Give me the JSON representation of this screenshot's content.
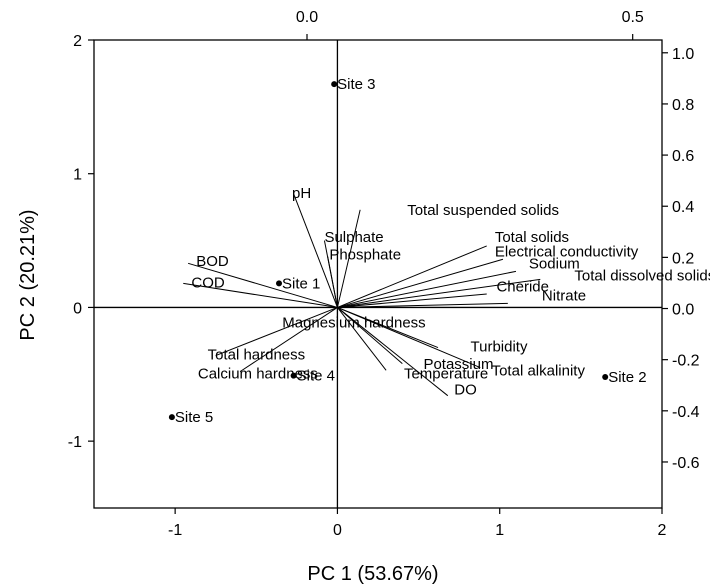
{
  "chart_data": {
    "type": "scatter",
    "subtype": "PCA biplot",
    "xlabel": "PC 1 (53.67%)",
    "ylabel": "PC 2 (20.21%)",
    "xlim": [
      -1.5,
      2
    ],
    "ylim": [
      -1.5,
      2
    ],
    "xticks": [
      -1,
      0,
      1,
      2
    ],
    "yticks": [
      -1,
      0,
      1,
      2
    ],
    "top_axis": {
      "lim": [
        -0.327,
        0.545
      ],
      "ticks": [
        0.0,
        0.5
      ],
      "tick_labels": [
        "0.0",
        "0.5"
      ]
    },
    "right_axis": {
      "lim": [
        -0.78,
        1.05
      ],
      "ticks": [
        1.0,
        0.8,
        0.6,
        0.4,
        0.2,
        0.0,
        -0.2,
        -0.4,
        -0.6
      ],
      "tick_labels": [
        "1.0",
        "0.8",
        "0.6",
        "0.4",
        "0.2",
        "0.0",
        "-0.2",
        "-0.4",
        "-0.6"
      ]
    },
    "grid": false,
    "reference_lines": {
      "x": 0,
      "y": 0
    },
    "sites": [
      {
        "label": "Site 1",
        "x": -0.36,
        "y": 0.18
      },
      {
        "label": "Site 2",
        "x": 1.65,
        "y": -0.52
      },
      {
        "label": "Site 3",
        "x": -0.02,
        "y": 1.67
      },
      {
        "label": "Site 4",
        "x": -0.27,
        "y": -0.51
      },
      {
        "label": "Site 5",
        "x": -1.02,
        "y": -0.82
      }
    ],
    "loadings": [
      {
        "label": "pH",
        "x": -0.27,
        "y": 0.85,
        "label_x": -0.28,
        "label_y": 0.82
      },
      {
        "label": "Total suspended solids",
        "x": 0.14,
        "y": 0.73,
        "label_x": 0.43,
        "label_y": 0.69
      },
      {
        "label": "Sulphate",
        "x": -0.08,
        "y": 0.5,
        "label_x": -0.08,
        "label_y": 0.49
      },
      {
        "label": "Phosphate",
        "x": -0.06,
        "y": 0.38,
        "label_x": -0.05,
        "label_y": 0.36
      },
      {
        "label": "BOD",
        "x": -0.92,
        "y": 0.33,
        "label_x": -0.87,
        "label_y": 0.31
      },
      {
        "label": "COD",
        "x": -0.95,
        "y": 0.18,
        "label_x": -0.9,
        "label_y": 0.15
      },
      {
        "label": "Total solids",
        "x": 0.92,
        "y": 0.46,
        "label_x": 0.97,
        "label_y": 0.49
      },
      {
        "label": "Electrical conductivity",
        "x": 1.02,
        "y": 0.36,
        "label_x": 0.97,
        "label_y": 0.38
      },
      {
        "label": "Sodium",
        "x": 1.1,
        "y": 0.27,
        "label_x": 1.18,
        "label_y": 0.29
      },
      {
        "label": "Total dissolved solids",
        "x": 1.25,
        "y": 0.21,
        "label_x": 1.46,
        "label_y": 0.2
      },
      {
        "label": "Cheride",
        "x": 0.92,
        "y": 0.1,
        "label_x": 0.98,
        "label_y": 0.12
      },
      {
        "label": "Nitrate",
        "x": 1.05,
        "y": 0.03,
        "label_x": 1.26,
        "label_y": 0.05
      },
      {
        "label": "Magnesium hardness",
        "x": 0.0,
        "y": -0.1,
        "label_x": -0.34,
        "label_y": -0.15
      },
      {
        "label": "Total hardness",
        "x": -0.75,
        "y": -0.36,
        "label_x": -0.8,
        "label_y": -0.39
      },
      {
        "label": "Calcium hardness",
        "x": -0.6,
        "y": -0.48,
        "label_x": -0.86,
        "label_y": -0.53
      },
      {
        "label": "Turbidity",
        "x": 0.62,
        "y": -0.3,
        "label_x": 0.82,
        "label_y": -0.33
      },
      {
        "label": "Total alkalinity",
        "x": 0.88,
        "y": -0.45,
        "label_x": 0.95,
        "label_y": -0.51
      },
      {
        "label": "Potassium",
        "x": 0.4,
        "y": -0.42,
        "label_x": 0.53,
        "label_y": -0.46
      },
      {
        "label": "Temperature",
        "x": 0.3,
        "y": -0.47,
        "label_x": 0.41,
        "label_y": -0.53
      },
      {
        "label": "DO",
        "x": 0.68,
        "y": -0.66,
        "label_x": 0.72,
        "label_y": -0.65
      }
    ]
  }
}
